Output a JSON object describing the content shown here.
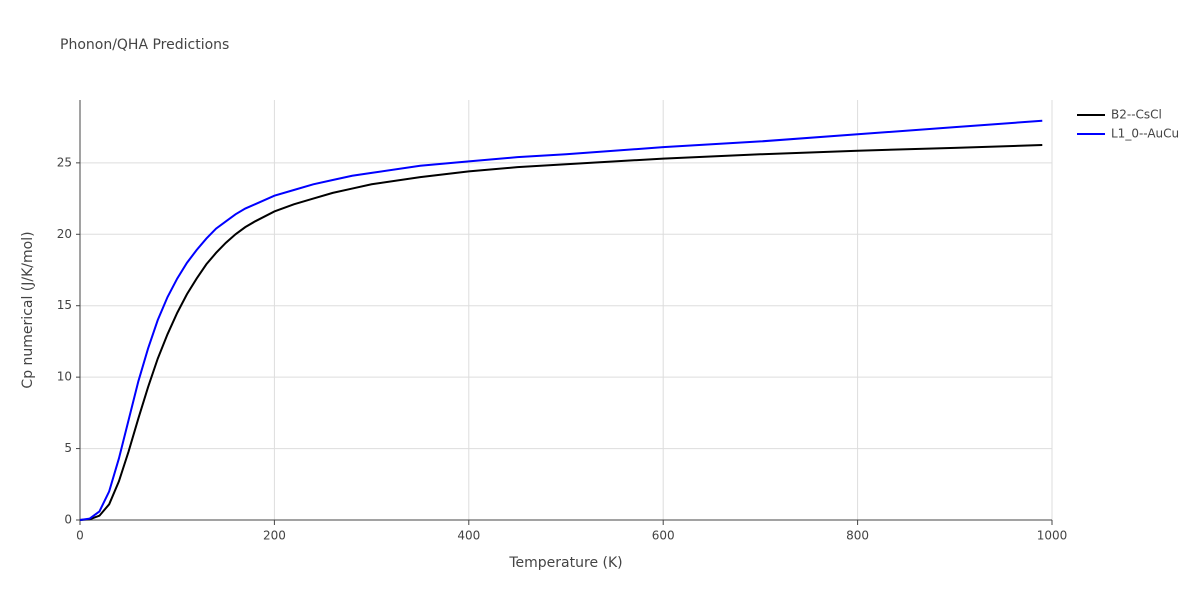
{
  "chart_data": {
    "type": "line",
    "title": "Phonon/QHA Predictions",
    "x_label": "Temperature (K)",
    "y_label": "Cp numerical (J/K/mol)",
    "x": [
      0,
      10,
      20,
      30,
      40,
      50,
      60,
      70,
      80,
      90,
      100,
      110,
      120,
      130,
      140,
      150,
      160,
      170,
      180,
      200,
      220,
      240,
      260,
      280,
      300,
      350,
      400,
      450,
      500,
      600,
      700,
      800,
      900,
      990
    ],
    "series": [
      {
        "name": "B2--CsCl",
        "color": "#000000",
        "values": [
          0,
          0.05,
          0.3,
          1.1,
          2.7,
          4.8,
          7.1,
          9.3,
          11.3,
          13.0,
          14.5,
          15.8,
          16.9,
          17.9,
          18.7,
          19.4,
          20.0,
          20.5,
          20.9,
          21.6,
          22.1,
          22.5,
          22.9,
          23.2,
          23.5,
          24.0,
          24.4,
          24.7,
          24.9,
          25.3,
          25.6,
          25.85,
          26.05,
          26.25
        ]
      },
      {
        "name": "L1_0--AuCu",
        "color": "#0000ff",
        "values": [
          0,
          0.1,
          0.6,
          2.0,
          4.3,
          7.0,
          9.7,
          12.0,
          14.0,
          15.6,
          16.9,
          18.0,
          18.9,
          19.7,
          20.4,
          20.9,
          21.4,
          21.8,
          22.1,
          22.7,
          23.1,
          23.5,
          23.8,
          24.1,
          24.3,
          24.8,
          25.1,
          25.4,
          25.6,
          26.1,
          26.5,
          27.0,
          27.5,
          27.95
        ]
      }
    ],
    "xlim": [
      0,
      1000
    ],
    "xticks": [
      0,
      200,
      400,
      600,
      800,
      1000
    ],
    "ylim": [
      0,
      29.4
    ],
    "yticks": [
      0,
      5,
      10,
      15,
      20,
      25
    ],
    "grid": true,
    "legend": "right"
  }
}
